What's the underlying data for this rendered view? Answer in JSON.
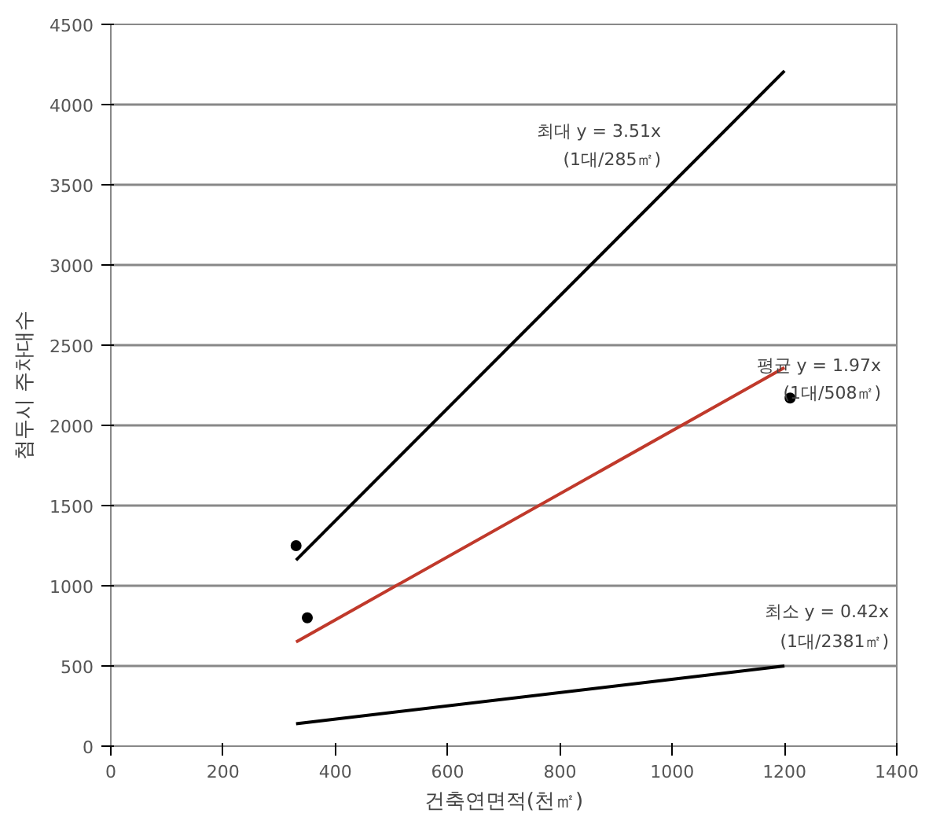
{
  "chart_data": {
    "type": "line",
    "xlabel": "건축연면적(천㎡)",
    "ylabel": "첨두시 주차대수",
    "xlim": [
      0,
      1400
    ],
    "xticks": [
      0,
      200,
      400,
      600,
      800,
      1000,
      1200,
      1400
    ],
    "ylim": [
      0,
      4500
    ],
    "yticks": [
      0,
      500,
      1000,
      1500,
      2000,
      2500,
      3000,
      3500,
      4000,
      4500
    ],
    "grid": "y",
    "series": [
      {
        "color": "#000000",
        "x": [
          330,
          1200
        ],
        "values": [
          1160,
          4210
        ]
      },
      {
        "color": "#c0392b",
        "x": [
          330,
          1200
        ],
        "values": [
          650,
          2360
        ]
      },
      {
        "color": "#000000",
        "x": [
          330,
          1200
        ],
        "values": [
          140,
          500
        ]
      },
      {
        "type": "scatter",
        "marker": "circle",
        "color": "#000000",
        "x": [
          330,
          350,
          1210
        ],
        "values": [
          1250,
          800,
          2170
        ]
      }
    ],
    "annotations": [
      "최대 y = 3.51x",
      "(1대/285㎡)",
      "평균 y = 1.97x",
      "(1대/508㎡)",
      "최소 y = 0.42x",
      "(1대/2381㎡)"
    ]
  }
}
